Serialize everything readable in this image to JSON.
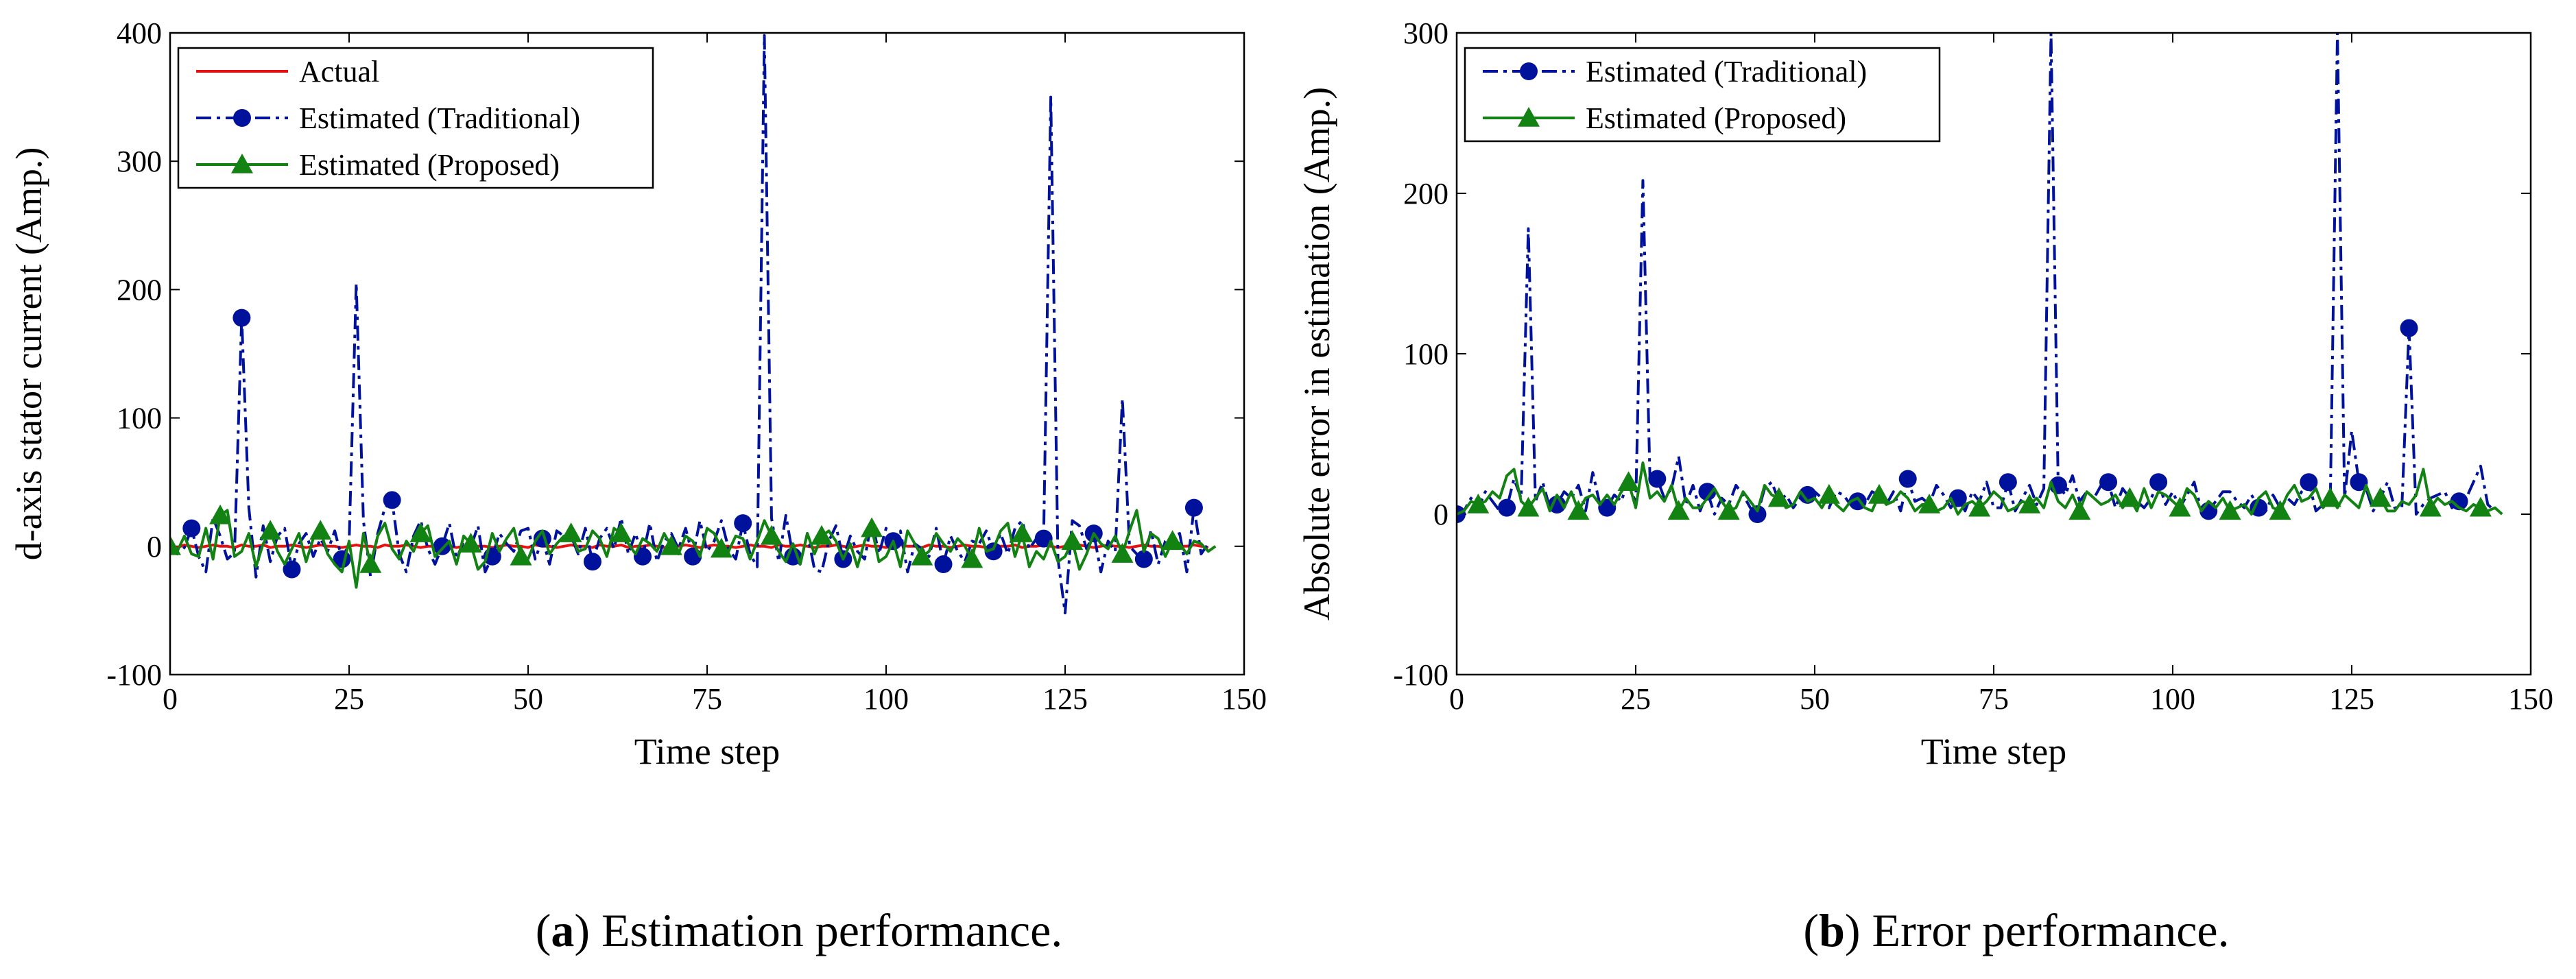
{
  "captions": [
    {
      "open": "(",
      "letter": "a",
      "close": ")",
      "text": " Estimation performance."
    },
    {
      "open": "(",
      "letter": "b",
      "close": ")",
      "text": " Error performance."
    }
  ],
  "colors": {
    "actual": "#e8100e",
    "traditional": "#00129c",
    "proposed": "#128212"
  },
  "chart_data": [
    {
      "type": "line",
      "title": "",
      "xlabel": "Time step",
      "ylabel": "d-axis stator current (Amp.)",
      "xlim": [
        0,
        150
      ],
      "ylim": [
        -100,
        400
      ],
      "xticks": [
        0,
        25,
        50,
        75,
        100,
        125,
        150
      ],
      "yticks": [
        -100,
        0,
        100,
        200,
        300,
        400
      ],
      "legend_position": "top-left",
      "marker_every": 7,
      "series": [
        {
          "name": "Actual",
          "style": "solid",
          "marker": "none",
          "color_key": "actual",
          "values": [
            0,
            -1,
            1,
            0,
            -1,
            0,
            1,
            0,
            0,
            -1,
            1,
            0,
            0,
            1,
            -1,
            0,
            0,
            1,
            0,
            -1,
            0,
            1,
            0,
            0,
            -1,
            0,
            1,
            0,
            0,
            -1,
            1,
            0,
            0,
            1,
            0,
            -1,
            0,
            0,
            1,
            0,
            -1,
            0,
            1,
            0,
            0,
            -1,
            0,
            1,
            0,
            0,
            -1,
            1,
            0,
            0,
            -1,
            0,
            1,
            0,
            0,
            -1,
            1,
            0,
            0,
            1,
            -1,
            0,
            0,
            1,
            0,
            -1,
            0,
            0,
            1,
            0,
            -1,
            0,
            1,
            0,
            0,
            -1,
            0,
            1,
            0,
            0,
            -1,
            1,
            0,
            0,
            1,
            0,
            -1,
            0,
            0,
            1,
            0,
            -1,
            0,
            1,
            0,
            0,
            -1,
            0,
            1,
            0,
            0,
            -1,
            1,
            0,
            0,
            -1,
            0,
            1,
            0,
            0,
            -1,
            1,
            0,
            0,
            1,
            -1,
            0,
            0,
            1,
            0,
            -1,
            0,
            0,
            1,
            0,
            -1,
            0,
            1,
            0,
            0,
            -1,
            0,
            1,
            0,
            0,
            -1,
            1,
            0,
            0,
            1,
            0,
            -1
          ]
        },
        {
          "name": "Estimated (Traditional)",
          "style": "dashdot",
          "marker": "circle",
          "color_key": "traditional",
          "values": [
            2,
            -6,
            -1,
            14,
            -8,
            -20,
            22,
            8,
            -10,
            -5,
            178,
            30,
            -24,
            16,
            -12,
            8,
            14,
            -18,
            2,
            10,
            -8,
            6,
            -4,
            12,
            -10,
            2,
            205,
            20,
            -24,
            10,
            30,
            36,
            -6,
            -20,
            8,
            20,
            -2,
            -14,
            0,
            18,
            -10,
            4,
            -1,
            16,
            -20,
            -8,
            10,
            2,
            -4,
            12,
            14,
            -10,
            6,
            -14,
            12,
            8,
            8,
            -6,
            14,
            -12,
            6,
            14,
            -2,
            22,
            -6,
            10,
            -8,
            18,
            -12,
            4,
            10,
            -2,
            14,
            -8,
            20,
            -4,
            4,
            20,
            -2,
            -10,
            18,
            -6,
            -16,
            398,
            22,
            -12,
            24,
            -8,
            -14,
            10,
            -18,
            -20,
            4,
            16,
            -10,
            8,
            -4,
            -10,
            20,
            -6,
            14,
            4,
            12,
            -20,
            2,
            -2,
            -8,
            14,
            -14,
            8,
            -4,
            -12,
            4,
            2,
            12,
            -4,
            10,
            -6,
            14,
            20,
            -2,
            6,
            6,
            350,
            -10,
            -52,
            20,
            16,
            -2,
            10,
            -20,
            4,
            -4,
            115,
            0,
            -6,
            -10,
            12,
            -14,
            4,
            8,
            10,
            -20,
            30,
            -6,
            2
          ]
        },
        {
          "name": "Estimated (Proposed)",
          "style": "solid",
          "marker": "triangle",
          "color_key": "proposed",
          "values": [
            0,
            -4,
            8,
            -6,
            -8,
            14,
            -10,
            24,
            28,
            -8,
            -4,
            10,
            -16,
            2,
            12,
            -4,
            -14,
            -2,
            10,
            -12,
            6,
            12,
            -6,
            -14,
            -20,
            4,
            -32,
            10,
            -14,
            8,
            18,
            -2,
            -10,
            4,
            -4,
            10,
            16,
            -8,
            -2,
            4,
            -14,
            8,
            2,
            -18,
            -12,
            10,
            -4,
            6,
            14,
            -8,
            -10,
            4,
            12,
            -6,
            2,
            8,
            10,
            -4,
            -2,
            12,
            6,
            -8,
            14,
            10,
            2,
            -6,
            6,
            2,
            -4,
            10,
            0,
            -6,
            8,
            4,
            -8,
            14,
            10,
            -2,
            -4,
            8,
            6,
            -10,
            4,
            20,
            8,
            -4,
            -12,
            2,
            -14,
            10,
            -6,
            8,
            12,
            4,
            -10,
            2,
            -16,
            4,
            14,
            -12,
            -8,
            4,
            -16,
            12,
            2,
            -8,
            -4,
            10,
            2,
            -4,
            6,
            0,
            -10,
            14,
            -4,
            -2,
            12,
            18,
            -8,
            10,
            -16,
            -4,
            -10,
            4,
            -12,
            -8,
            4,
            -18,
            -6,
            10,
            2,
            -2,
            8,
            -6,
            12,
            28,
            -4,
            10,
            6,
            -8,
            4,
            2,
            -6,
            4,
            2,
            -4,
            0
          ]
        }
      ]
    },
    {
      "type": "line",
      "title": "",
      "xlabel": "Time step",
      "ylabel": "Absolute error in estimation (Amp.)",
      "xlim": [
        0,
        150
      ],
      "ylim": [
        -100,
        300
      ],
      "xticks": [
        0,
        25,
        50,
        75,
        100,
        125,
        150
      ],
      "yticks": [
        -100,
        0,
        100,
        200,
        300
      ],
      "legend_position": "top-left",
      "marker_every": 7,
      "series": [
        {
          "name": "Estimated (Traditional)",
          "style": "dashdot",
          "marker": "circle",
          "color_key": "traditional",
          "values": [
            0,
            2,
            10,
            4,
            14,
            8,
            2,
            4,
            22,
            10,
            178,
            8,
            20,
            4,
            6,
            14,
            10,
            18,
            2,
            26,
            6,
            4,
            12,
            8,
            22,
            6,
            208,
            20,
            22,
            10,
            16,
            36,
            6,
            18,
            2,
            14,
            0,
            10,
            6,
            18,
            12,
            4,
            0,
            16,
            20,
            8,
            12,
            4,
            10,
            12,
            14,
            10,
            4,
            14,
            12,
            6,
            8,
            6,
            14,
            12,
            6,
            14,
            2,
            22,
            8,
            10,
            6,
            18,
            12,
            4,
            10,
            2,
            14,
            8,
            20,
            4,
            4,
            20,
            2,
            10,
            18,
            6,
            16,
            300,
            18,
            12,
            24,
            8,
            14,
            10,
            18,
            20,
            4,
            16,
            10,
            8,
            4,
            10,
            20,
            6,
            14,
            4,
            12,
            20,
            2,
            2,
            8,
            14,
            14,
            8,
            4,
            12,
            4,
            2,
            12,
            4,
            10,
            6,
            14,
            20,
            2,
            6,
            6,
            300,
            10,
            52,
            20,
            16,
            2,
            10,
            20,
            4,
            4,
            116,
            0,
            6,
            10,
            12,
            14,
            4,
            8,
            10,
            20,
            30,
            6,
            2
          ]
        },
        {
          "name": "Estimated (Proposed)",
          "style": "solid",
          "marker": "triangle",
          "color_key": "proposed",
          "values": [
            0,
            2,
            8,
            6,
            8,
            14,
            10,
            24,
            28,
            8,
            4,
            10,
            16,
            2,
            12,
            4,
            14,
            2,
            10,
            12,
            6,
            12,
            6,
            14,
            20,
            4,
            32,
            10,
            14,
            8,
            18,
            2,
            10,
            4,
            4,
            10,
            16,
            8,
            2,
            4,
            14,
            8,
            2,
            18,
            12,
            10,
            4,
            6,
            14,
            8,
            10,
            4,
            12,
            6,
            2,
            8,
            10,
            4,
            2,
            12,
            6,
            8,
            14,
            10,
            2,
            6,
            6,
            2,
            4,
            10,
            0,
            6,
            8,
            4,
            8,
            14,
            10,
            2,
            4,
            8,
            6,
            10,
            4,
            20,
            8,
            4,
            12,
            2,
            14,
            10,
            6,
            8,
            12,
            4,
            10,
            2,
            16,
            4,
            14,
            12,
            8,
            4,
            16,
            12,
            2,
            8,
            4,
            10,
            2,
            4,
            6,
            0,
            10,
            14,
            4,
            2,
            12,
            18,
            8,
            10,
            16,
            4,
            10,
            4,
            12,
            8,
            4,
            18,
            6,
            10,
            2,
            2,
            8,
            6,
            12,
            28,
            4,
            10,
            6,
            8,
            4,
            2,
            6,
            4,
            2,
            4,
            0
          ]
        }
      ]
    }
  ]
}
